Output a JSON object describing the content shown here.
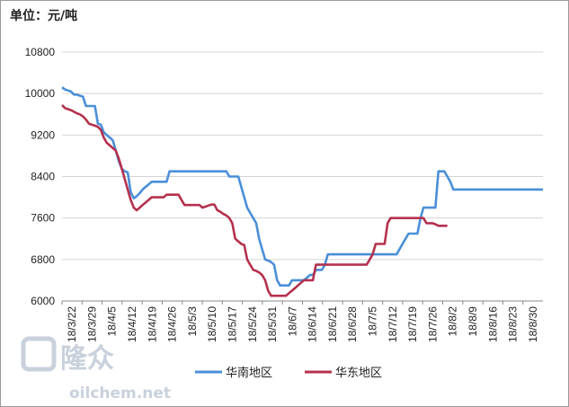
{
  "unit_label": "单位：元/吨",
  "watermark": {
    "brand": "隆众",
    "url": "oilchem.net"
  },
  "colors": {
    "series_south": "#4a8fd8",
    "series_east": "#b5304f",
    "grid": "#d4d4d4",
    "axis": "#888888"
  },
  "chart_data": {
    "type": "line",
    "title": "",
    "xlabel": "",
    "ylabel": "单位：元/吨",
    "ylim": [
      6000,
      10800
    ],
    "yticks": [
      6000,
      6800,
      7600,
      8400,
      9200,
      10000,
      10800
    ],
    "grid": true,
    "legend_position": "bottom",
    "x_tick_labels": [
      "18/3/22",
      "18/3/29",
      "18/4/5",
      "18/4/12",
      "18/4/19",
      "18/4/26",
      "18/5/3",
      "18/5/10",
      "18/5/17",
      "18/5/24",
      "18/5/31",
      "18/6/7",
      "18/6/14",
      "18/6/21",
      "18/6/28",
      "18/7/5",
      "18/7/12",
      "18/7/19",
      "18/7/26",
      "18/8/2",
      "18/8/9",
      "18/8/16",
      "18/8/23",
      "18/8/30"
    ],
    "series": [
      {
        "name": "华南地区",
        "x": [
          0,
          1,
          2,
          3,
          4,
          5,
          6,
          7,
          8,
          9,
          10,
          11,
          12,
          13,
          14,
          15,
          16,
          17,
          18,
          19,
          20,
          21,
          22,
          23,
          24,
          25,
          26,
          27,
          28,
          29,
          30,
          31,
          32,
          33,
          34,
          35,
          36,
          37,
          38,
          39,
          40,
          41,
          42,
          43,
          44,
          45,
          46,
          47,
          48,
          49,
          50,
          51,
          52,
          53,
          54,
          55,
          56,
          57,
          58,
          59,
          60,
          61,
          62,
          63,
          64,
          65,
          66,
          67,
          68,
          69,
          70,
          71,
          72,
          73,
          74,
          75,
          76,
          77,
          78,
          79,
          80,
          81,
          82,
          83,
          84,
          85,
          86,
          87,
          88,
          89,
          90,
          91,
          92,
          93,
          94,
          95,
          96,
          97,
          98,
          99,
          100,
          101,
          102,
          103,
          104,
          105,
          106,
          107,
          108,
          109,
          110,
          111,
          112,
          113,
          114,
          115,
          116,
          117,
          118,
          119,
          120,
          121,
          122,
          123,
          124,
          125,
          126,
          127,
          128,
          129,
          130,
          131,
          132,
          133,
          134,
          135,
          136,
          137,
          138,
          139,
          140,
          141,
          142,
          143,
          144,
          145,
          146,
          147,
          148,
          149,
          150,
          151,
          152,
          153,
          154,
          155,
          156,
          157,
          158,
          159,
          160,
          161
        ],
        "values": [
          10120,
          10080,
          10060,
          10040,
          9980,
          9980,
          9960,
          9940,
          9760,
          9760,
          9760,
          9760,
          9420,
          9400,
          9250,
          9200,
          9150,
          9100,
          8900,
          8700,
          8550,
          8500,
          8480,
          8100,
          7980,
          8020,
          8080,
          8150,
          8200,
          8250,
          8300,
          8300,
          8300,
          8300,
          8300,
          8300,
          8500,
          8500,
          8500,
          8500,
          8500,
          8500,
          8500,
          8500,
          8500,
          8500,
          8500,
          8500,
          8500,
          8500,
          8500,
          8500,
          8500,
          8500,
          8500,
          8500,
          8400,
          8400,
          8400,
          8400,
          8200,
          8000,
          7800,
          7700,
          7600,
          7500,
          7200,
          7000,
          6800,
          6780,
          6750,
          6700,
          6400,
          6300,
          6300,
          6300,
          6300,
          6400,
          6400,
          6400,
          6400,
          6400,
          6450,
          6500,
          6500,
          6600,
          6600,
          6600,
          6700,
          6900,
          6900,
          6900,
          6900,
          6900,
          6900,
          6900,
          6900,
          6900,
          6900,
          6900,
          6900,
          6900,
          6900,
          6900,
          6900,
          6900,
          6900,
          6900,
          6900,
          6900,
          6900,
          6900,
          6900,
          7000,
          7100,
          7200,
          7300,
          7300,
          7300,
          7300,
          7600,
          7800,
          7800,
          7800,
          7800,
          7800,
          8500,
          8500,
          8500,
          8400,
          8300,
          8150,
          8150,
          8150,
          8150,
          8150,
          8150,
          8150,
          8150,
          8150,
          8150,
          8150,
          8150,
          8150,
          8150,
          8150,
          8150,
          8150,
          8150,
          8150,
          8150,
          8150,
          8150,
          8150,
          8150,
          8150,
          8150,
          8150,
          8150,
          8150,
          8150,
          8150
        ]
      },
      {
        "name": "华东地区",
        "x": [
          0,
          1,
          2,
          3,
          4,
          5,
          6,
          7,
          8,
          9,
          10,
          11,
          12,
          13,
          14,
          15,
          16,
          17,
          18,
          19,
          20,
          21,
          22,
          23,
          24,
          25,
          26,
          27,
          28,
          29,
          30,
          31,
          32,
          33,
          34,
          35,
          36,
          37,
          38,
          39,
          40,
          41,
          42,
          43,
          44,
          45,
          46,
          47,
          48,
          49,
          50,
          51,
          52,
          53,
          54,
          55,
          56,
          57,
          58,
          59,
          60,
          61,
          62,
          63,
          64,
          65,
          66,
          67,
          68,
          69,
          70,
          71,
          72,
          73,
          74,
          75,
          76,
          77,
          78,
          79,
          80,
          81,
          82,
          83,
          84,
          85,
          86,
          87,
          88,
          89,
          90,
          91,
          92,
          93,
          94,
          95,
          96,
          97,
          98,
          99,
          100,
          101,
          102,
          103,
          104,
          105,
          106,
          107,
          108,
          109,
          110,
          111,
          112,
          113,
          114,
          115,
          116,
          117,
          118,
          119,
          120,
          121,
          122,
          123,
          124,
          125,
          126,
          127,
          128,
          129
        ],
        "values": [
          9780,
          9720,
          9700,
          9680,
          9650,
          9620,
          9600,
          9560,
          9500,
          9420,
          9400,
          9380,
          9360,
          9300,
          9150,
          9050,
          9000,
          8950,
          8900,
          8750,
          8550,
          8350,
          8150,
          7950,
          7800,
          7750,
          7800,
          7850,
          7900,
          7950,
          8000,
          8000,
          8000,
          8000,
          8000,
          8050,
          8050,
          8050,
          8050,
          8050,
          7950,
          7850,
          7850,
          7850,
          7850,
          7850,
          7850,
          7800,
          7820,
          7840,
          7860,
          7860,
          7750,
          7720,
          7680,
          7650,
          7600,
          7500,
          7200,
          7150,
          7100,
          7080,
          6800,
          6700,
          6600,
          6580,
          6550,
          6500,
          6400,
          6200,
          6100,
          6100,
          6100,
          6100,
          6100,
          6100,
          6150,
          6200,
          6250,
          6300,
          6350,
          6400,
          6400,
          6400,
          6400,
          6700,
          6700,
          6700,
          6700,
          6700,
          6700,
          6700,
          6700,
          6700,
          6700,
          6700,
          6700,
          6700,
          6700,
          6700,
          6700,
          6700,
          6700,
          6800,
          6900,
          7100,
          7100,
          7100,
          7100,
          7500,
          7600,
          7600,
          7600,
          7600,
          7600,
          7600,
          7600,
          7600,
          7600,
          7600,
          7600,
          7600,
          7500,
          7500,
          7500,
          7480,
          7450,
          7450,
          7450,
          7450
        ]
      }
    ]
  }
}
